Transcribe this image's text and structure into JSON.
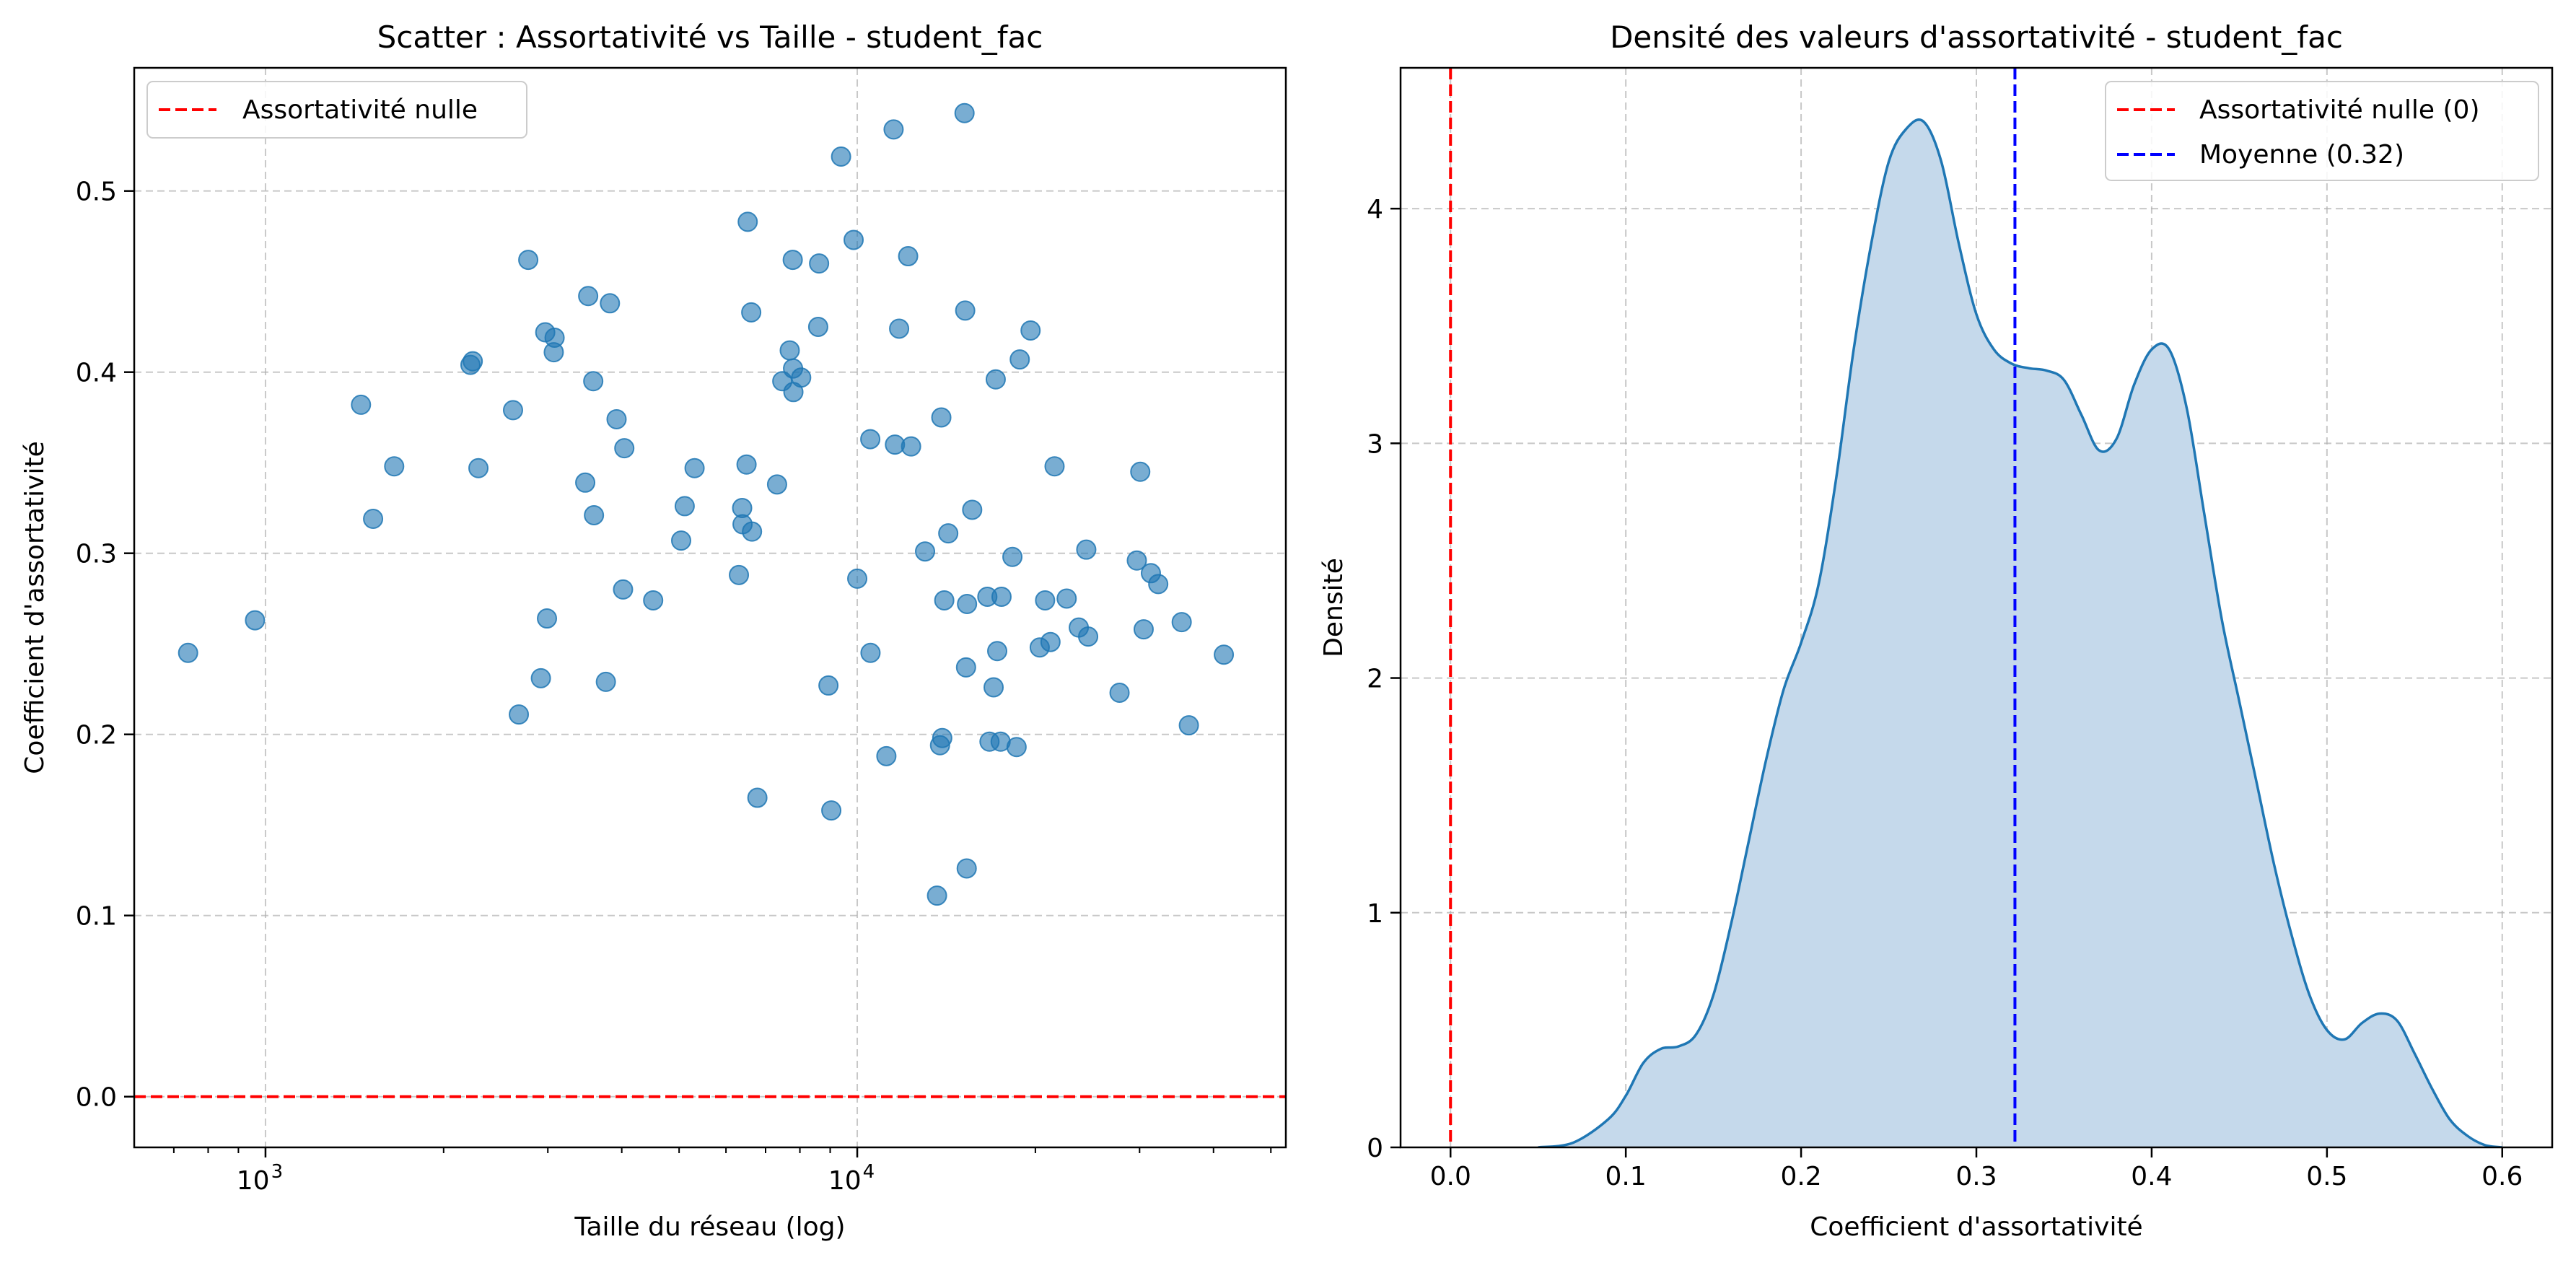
{
  "chart_data": [
    {
      "type": "scatter",
      "title": "Scatter : Assortativité vs Taille - student_fac",
      "xlabel": "Taille du réseau (log)",
      "ylabel": "Coefficient d'assortativité",
      "x_scale": "log",
      "xlim": [
        600,
        53000
      ],
      "ylim": [
        -0.028,
        0.568
      ],
      "x_ticks": [
        {
          "value": 1000,
          "label": "10",
          "exp": "3"
        },
        {
          "value": 10000,
          "label": "10",
          "exp": "4"
        }
      ],
      "y_ticks": [
        {
          "value": 0.0,
          "label": "0.0"
        },
        {
          "value": 0.1,
          "label": "0.1"
        },
        {
          "value": 0.2,
          "label": "0.2"
        },
        {
          "value": 0.3,
          "label": "0.3"
        },
        {
          "value": 0.4,
          "label": "0.4"
        },
        {
          "value": 0.5,
          "label": "0.5"
        }
      ],
      "grid": true,
      "legend_position": "top-left",
      "reference_lines": [
        {
          "orientation": "horizontal",
          "value": 0,
          "label": "Assortativité nulle",
          "color": "#ff0000",
          "style": "dashed"
        }
      ],
      "series": [
        {
          "color": "#1f77b4",
          "points": [
            [
              740,
              0.245
            ],
            [
              960,
              0.263
            ],
            [
              1450,
              0.382
            ],
            [
              1520,
              0.319
            ],
            [
              1650,
              0.348
            ],
            [
              2220,
              0.404
            ],
            [
              2240,
              0.406
            ],
            [
              2290,
              0.347
            ],
            [
              2620,
              0.379
            ],
            [
              2680,
              0.211
            ],
            [
              2780,
              0.462
            ],
            [
              2920,
              0.231
            ],
            [
              2970,
              0.422
            ],
            [
              2990,
              0.264
            ],
            [
              3070,
              0.411
            ],
            [
              3080,
              0.419
            ],
            [
              3470,
              0.339
            ],
            [
              3510,
              0.442
            ],
            [
              3580,
              0.395
            ],
            [
              3590,
              0.321
            ],
            [
              3760,
              0.229
            ],
            [
              3820,
              0.438
            ],
            [
              3920,
              0.374
            ],
            [
              4020,
              0.28
            ],
            [
              4040,
              0.358
            ],
            [
              4520,
              0.274
            ],
            [
              5040,
              0.307
            ],
            [
              5110,
              0.326
            ],
            [
              5310,
              0.347
            ],
            [
              6310,
              0.288
            ],
            [
              6390,
              0.325
            ],
            [
              6400,
              0.316
            ],
            [
              6500,
              0.349
            ],
            [
              6530,
              0.483
            ],
            [
              6620,
              0.433
            ],
            [
              6640,
              0.312
            ],
            [
              6780,
              0.165
            ],
            [
              7320,
              0.338
            ],
            [
              7470,
              0.395
            ],
            [
              7690,
              0.412
            ],
            [
              7780,
              0.462
            ],
            [
              7790,
              0.402
            ],
            [
              7800,
              0.389
            ],
            [
              8040,
              0.397
            ],
            [
              8590,
              0.425
            ],
            [
              8620,
              0.46
            ],
            [
              8940,
              0.227
            ],
            [
              9040,
              0.158
            ],
            [
              9390,
              0.519
            ],
            [
              9860,
              0.473
            ],
            [
              10000,
              0.286
            ],
            [
              10520,
              0.363
            ],
            [
              10530,
              0.245
            ],
            [
              11200,
              0.188
            ],
            [
              11520,
              0.534
            ],
            [
              11580,
              0.36
            ],
            [
              11770,
              0.424
            ],
            [
              12190,
              0.464
            ],
            [
              12330,
              0.359
            ],
            [
              13020,
              0.301
            ],
            [
              13640,
              0.111
            ],
            [
              13800,
              0.194
            ],
            [
              13870,
              0.375
            ],
            [
              13920,
              0.198
            ],
            [
              14030,
              0.274
            ],
            [
              14250,
              0.311
            ],
            [
              15180,
              0.543
            ],
            [
              15220,
              0.434
            ],
            [
              15270,
              0.237
            ],
            [
              15310,
              0.126
            ],
            [
              15330,
              0.272
            ],
            [
              15640,
              0.324
            ],
            [
              16590,
              0.276
            ],
            [
              16730,
              0.196
            ],
            [
              17000,
              0.226
            ],
            [
              17140,
              0.396
            ],
            [
              17240,
              0.246
            ],
            [
              17470,
              0.196
            ],
            [
              17530,
              0.276
            ],
            [
              18290,
              0.298
            ],
            [
              18590,
              0.193
            ],
            [
              18820,
              0.407
            ],
            [
              19630,
              0.423
            ],
            [
              20340,
              0.248
            ],
            [
              20770,
              0.274
            ],
            [
              21210,
              0.251
            ],
            [
              21550,
              0.348
            ],
            [
              22590,
              0.275
            ],
            [
              23680,
              0.259
            ],
            [
              24380,
              0.302
            ],
            [
              24560,
              0.254
            ],
            [
              27750,
              0.223
            ],
            [
              29680,
              0.296
            ],
            [
              30080,
              0.345
            ],
            [
              30480,
              0.258
            ],
            [
              31350,
              0.289
            ],
            [
              32260,
              0.283
            ],
            [
              35340,
              0.262
            ],
            [
              36340,
              0.205
            ],
            [
              41640,
              0.244
            ]
          ]
        }
      ]
    },
    {
      "type": "area",
      "title": "Densité des valeurs d'assortativité - student_fac",
      "xlabel": "Coefficient d'assortativité",
      "ylabel": "Densité",
      "xlim": [
        -0.0285,
        0.6285
      ],
      "ylim": [
        0,
        4.6
      ],
      "x_ticks": [
        {
          "value": 0.0,
          "label": "0.0"
        },
        {
          "value": 0.1,
          "label": "0.1"
        },
        {
          "value": 0.2,
          "label": "0.2"
        },
        {
          "value": 0.3,
          "label": "0.3"
        },
        {
          "value": 0.4,
          "label": "0.4"
        },
        {
          "value": 0.5,
          "label": "0.5"
        },
        {
          "value": 0.6,
          "label": "0.6"
        }
      ],
      "y_ticks": [
        {
          "value": 0,
          "label": "0"
        },
        {
          "value": 1,
          "label": "1"
        },
        {
          "value": 2,
          "label": "2"
        },
        {
          "value": 3,
          "label": "3"
        },
        {
          "value": 4,
          "label": "4"
        }
      ],
      "grid": true,
      "legend_position": "top-right",
      "reference_lines": [
        {
          "orientation": "vertical",
          "value": 0,
          "label": "Assortativité nulle (0)",
          "color": "#ff0000",
          "style": "dashed"
        },
        {
          "orientation": "vertical",
          "value": 0.322,
          "label": "Moyenne (0.32)",
          "color": "#0000ff",
          "style": "dashed"
        }
      ],
      "series": [
        {
          "color": "#1f77b4",
          "fill": "#c5d9eb",
          "points": [
            [
              0.05,
              0.0
            ],
            [
              0.07,
              0.02
            ],
            [
              0.09,
              0.12
            ],
            [
              0.1,
              0.22
            ],
            [
              0.11,
              0.36
            ],
            [
              0.12,
              0.42
            ],
            [
              0.13,
              0.43
            ],
            [
              0.14,
              0.48
            ],
            [
              0.15,
              0.65
            ],
            [
              0.16,
              0.95
            ],
            [
              0.17,
              1.3
            ],
            [
              0.18,
              1.65
            ],
            [
              0.19,
              1.95
            ],
            [
              0.2,
              2.15
            ],
            [
              0.21,
              2.4
            ],
            [
              0.22,
              2.85
            ],
            [
              0.23,
              3.4
            ],
            [
              0.24,
              3.85
            ],
            [
              0.25,
              4.2
            ],
            [
              0.26,
              4.34
            ],
            [
              0.27,
              4.37
            ],
            [
              0.28,
              4.2
            ],
            [
              0.29,
              3.85
            ],
            [
              0.3,
              3.55
            ],
            [
              0.31,
              3.4
            ],
            [
              0.32,
              3.34
            ],
            [
              0.33,
              3.32
            ],
            [
              0.34,
              3.31
            ],
            [
              0.35,
              3.27
            ],
            [
              0.36,
              3.12
            ],
            [
              0.37,
              2.97
            ],
            [
              0.38,
              3.02
            ],
            [
              0.39,
              3.25
            ],
            [
              0.4,
              3.4
            ],
            [
              0.41,
              3.4
            ],
            [
              0.42,
              3.15
            ],
            [
              0.43,
              2.7
            ],
            [
              0.44,
              2.25
            ],
            [
              0.45,
              1.9
            ],
            [
              0.46,
              1.55
            ],
            [
              0.47,
              1.2
            ],
            [
              0.48,
              0.9
            ],
            [
              0.49,
              0.65
            ],
            [
              0.5,
              0.5
            ],
            [
              0.51,
              0.46
            ],
            [
              0.52,
              0.53
            ],
            [
              0.53,
              0.57
            ],
            [
              0.54,
              0.54
            ],
            [
              0.55,
              0.4
            ],
            [
              0.56,
              0.25
            ],
            [
              0.57,
              0.12
            ],
            [
              0.58,
              0.05
            ],
            [
              0.59,
              0.01
            ],
            [
              0.6,
              0.0
            ]
          ]
        }
      ]
    }
  ]
}
